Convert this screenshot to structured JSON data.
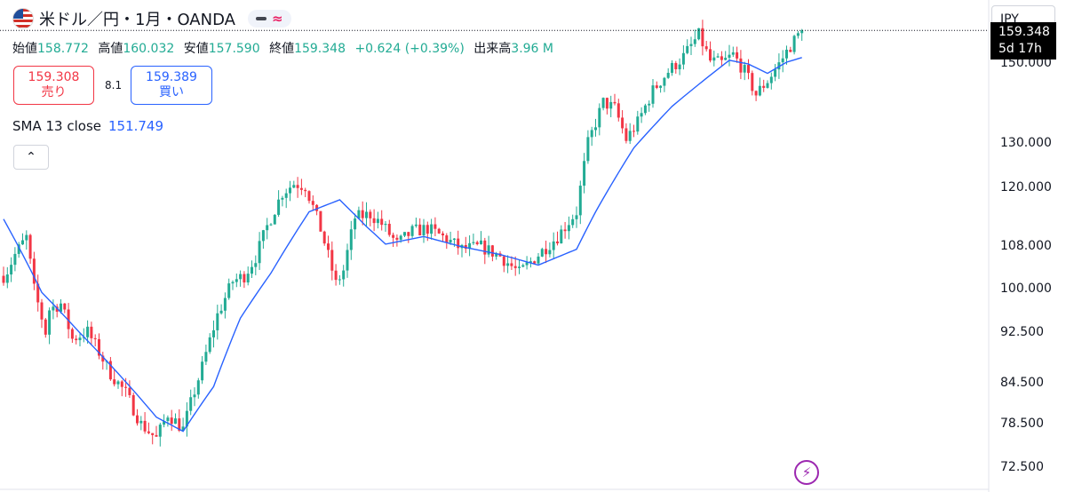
{
  "header": {
    "symbol_title": "米ドル／円・1月・OANDA",
    "flag_icon": "us-flag-icon",
    "indicator_icons": [
      "minus-icon",
      "approx-wave-icon"
    ]
  },
  "ohlc": {
    "open_label": "始値",
    "open": "158.772",
    "high_label": "高値",
    "high": "160.032",
    "low_label": "安値",
    "low": "157.590",
    "close_label": "終値",
    "close": "159.348",
    "change": "+0.624 (+0.39%)",
    "volume_label": "出来高",
    "volume": "3.96 M"
  },
  "trade": {
    "sell_price": "159.308",
    "sell_label": "売り",
    "spread": "8.1",
    "buy_price": "159.389",
    "buy_label": "買い"
  },
  "indicator": {
    "label": "SMA 13 close",
    "value": "151.749"
  },
  "currency": "JPY",
  "last_price": {
    "value": "159.348",
    "countdown": "5d 17h"
  },
  "price_axis_labels": [
    "150.000",
    "130.000",
    "120.000",
    "108.000",
    "100.000",
    "92.500",
    "84.500",
    "78.500",
    "72.500"
  ],
  "colors": {
    "up": "#22ab94",
    "down": "#f23645",
    "sma": "#2962ff",
    "bolt": "#9c27b0"
  },
  "chart_data": {
    "type": "candlestick",
    "y_scale": "log",
    "ylim": [
      70.5,
      163
    ],
    "y_ticks": [
      150,
      130,
      120,
      108,
      100,
      92.5,
      84.5,
      78.5,
      72.5
    ],
    "series": [
      {
        "name": "米ドル／円",
        "anchors": [
          [
            0,
            102.5
          ],
          [
            1,
            103.5
          ],
          [
            3,
            106.5
          ],
          [
            6,
            109.8
          ],
          [
            8,
            100.0
          ],
          [
            11,
            92.6
          ],
          [
            12,
            96.5
          ],
          [
            15,
            97.5
          ],
          [
            18,
            91.5
          ],
          [
            22,
            92.7
          ],
          [
            28,
            86.0
          ],
          [
            32,
            83.0
          ],
          [
            36,
            78.5
          ],
          [
            40,
            76.5
          ],
          [
            43,
            80.0
          ],
          [
            47,
            77.8
          ],
          [
            52,
            87.0
          ],
          [
            56,
            95.5
          ],
          [
            60,
            101.5
          ],
          [
            63,
            102.5
          ],
          [
            66,
            106.0
          ],
          [
            69,
            112.0
          ],
          [
            73,
            119.0
          ],
          [
            76,
            121.0
          ],
          [
            79,
            120.5
          ],
          [
            83,
            111.5
          ],
          [
            87,
            101.0
          ],
          [
            89,
            103.5
          ],
          [
            92,
            113.8
          ],
          [
            96,
            114.5
          ],
          [
            99,
            112.5
          ],
          [
            103,
            108.5
          ],
          [
            107,
            111.0
          ],
          [
            111,
            111.6
          ],
          [
            116,
            109.5
          ],
          [
            120,
            107.5
          ],
          [
            125,
            108.0
          ],
          [
            130,
            106.2
          ],
          [
            135,
            103.0
          ],
          [
            140,
            106.5
          ],
          [
            145,
            110.0
          ],
          [
            150,
            115.0
          ],
          [
            153,
            130.0
          ],
          [
            157,
            140.0
          ],
          [
            160,
            138.5
          ],
          [
            163,
            131.0
          ],
          [
            166,
            135.0
          ],
          [
            170,
            143.0
          ],
          [
            174,
            148.0
          ],
          [
            178,
            152.0
          ],
          [
            182,
            158.0
          ],
          [
            185,
            150.8
          ],
          [
            188,
            150.2
          ],
          [
            191,
            152.5
          ],
          [
            194,
            148.0
          ],
          [
            197,
            142.0
          ],
          [
            200,
            145.6
          ],
          [
            203,
            150.0
          ],
          [
            206,
            155.0
          ],
          [
            209,
            159.348
          ]
        ]
      },
      {
        "name": "SMA 13 close",
        "anchors": [
          [
            0,
            113.5
          ],
          [
            5,
            106.5
          ],
          [
            10,
            99.5
          ],
          [
            20,
            92.5
          ],
          [
            30,
            86.0
          ],
          [
            40,
            79.5
          ],
          [
            47,
            77.5
          ],
          [
            55,
            84.0
          ],
          [
            62,
            95.0
          ],
          [
            70,
            103.0
          ],
          [
            80,
            115.0
          ],
          [
            88,
            117.5
          ],
          [
            95,
            112.0
          ],
          [
            100,
            108.5
          ],
          [
            110,
            110.0
          ],
          [
            120,
            108.0
          ],
          [
            130,
            106.5
          ],
          [
            140,
            104.5
          ],
          [
            145,
            106.0
          ],
          [
            150,
            107.5
          ],
          [
            155,
            115.0
          ],
          [
            165,
            129.0
          ],
          [
            175,
            139.0
          ],
          [
            185,
            147.0
          ],
          [
            190,
            151.0
          ],
          [
            195,
            150.0
          ],
          [
            200,
            147.5
          ],
          [
            205,
            150.5
          ],
          [
            209,
            151.749
          ]
        ]
      }
    ]
  }
}
